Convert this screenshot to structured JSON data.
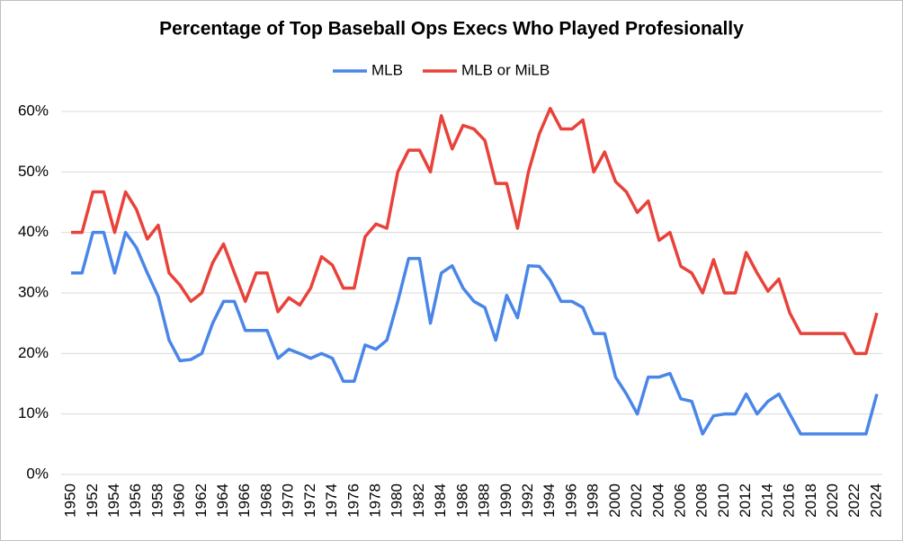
{
  "chart_data": {
    "type": "line",
    "title": "Percentage of Top Baseball Ops Execs Who Played Profesionally",
    "categories": [
      "1950",
      null,
      "1952",
      null,
      "1954",
      null,
      "1956",
      null,
      "1958",
      null,
      "1960",
      null,
      "1962",
      null,
      "1964",
      null,
      "1966",
      null,
      "1968",
      null,
      "1970",
      null,
      "1972",
      null,
      "1974",
      null,
      "1976",
      null,
      "1978",
      null,
      "1980",
      null,
      "1982",
      null,
      "1984",
      null,
      "1986",
      null,
      "1988",
      null,
      "1990",
      null,
      "1992",
      null,
      "1994",
      null,
      "1996",
      null,
      "1998",
      null,
      "2000",
      null,
      "2002",
      null,
      "2004",
      null,
      "2006",
      null,
      "2008",
      null,
      "2010",
      null,
      "2012",
      null,
      "2014",
      null,
      "2016",
      null,
      "2018",
      null,
      "2020",
      null,
      "2022",
      null,
      "2024"
    ],
    "series": [
      {
        "name": "MLB",
        "color": "#4a86e8",
        "values": [
          33.3,
          33.3,
          40,
          40,
          33.3,
          40,
          37.5,
          33.3,
          29.4,
          22.2,
          18.8,
          19,
          20,
          25,
          28.6,
          28.6,
          23.8,
          23.8,
          23.8,
          19.2,
          20.7,
          20,
          19.2,
          20,
          19.2,
          15.4,
          15.4,
          21.4,
          20.7,
          22.2,
          28.6,
          35.7,
          35.7,
          25,
          33.3,
          34.5,
          30.8,
          28.6,
          27.6,
          22.2,
          29.6,
          25.9,
          34.5,
          34.4,
          32.1,
          28.6,
          28.6,
          27.6,
          23.3,
          23.3,
          16.1,
          13.3,
          10,
          16.1,
          16.1,
          16.7,
          12.5,
          12.1,
          6.7,
          9.7,
          10,
          10,
          13.3,
          10,
          12.1,
          13.3,
          10,
          6.7,
          6.7,
          6.7,
          6.7,
          6.7,
          6.7,
          6.7,
          13.3
        ]
      },
      {
        "name": "MLB or MiLB",
        "color": "#e8423a",
        "values": [
          40,
          40,
          46.7,
          46.7,
          40,
          46.7,
          43.8,
          38.9,
          41.2,
          33.3,
          31.3,
          28.6,
          30,
          35,
          38.1,
          33.3,
          28.6,
          33.3,
          33.3,
          26.9,
          29.2,
          28,
          30.8,
          36,
          34.6,
          30.8,
          30.8,
          39.3,
          41.4,
          40.7,
          50,
          53.6,
          53.6,
          50,
          59.3,
          53.8,
          57.7,
          57.1,
          55.2,
          48.1,
          48.1,
          40.7,
          50,
          56.3,
          60.5,
          57.1,
          57.1,
          58.6,
          50,
          53.3,
          48.4,
          46.7,
          43.3,
          45.2,
          38.7,
          40,
          34.4,
          33.3,
          30,
          35.5,
          30,
          30,
          36.7,
          33.3,
          30.3,
          32.3,
          26.7,
          23.3,
          23.3,
          23.3,
          23.3,
          23.3,
          20,
          20,
          26.7
        ]
      }
    ],
    "ylim": [
      0,
      60
    ],
    "yticks": [
      {
        "value": 0,
        "label": "0%"
      },
      {
        "value": 10,
        "label": "10%"
      },
      {
        "value": 20,
        "label": "20%"
      },
      {
        "value": 30,
        "label": "30%"
      },
      {
        "value": 40,
        "label": "40%"
      },
      {
        "value": 50,
        "label": "50%"
      },
      {
        "value": 60,
        "label": "60%"
      }
    ],
    "grid": true,
    "legend": "top"
  }
}
